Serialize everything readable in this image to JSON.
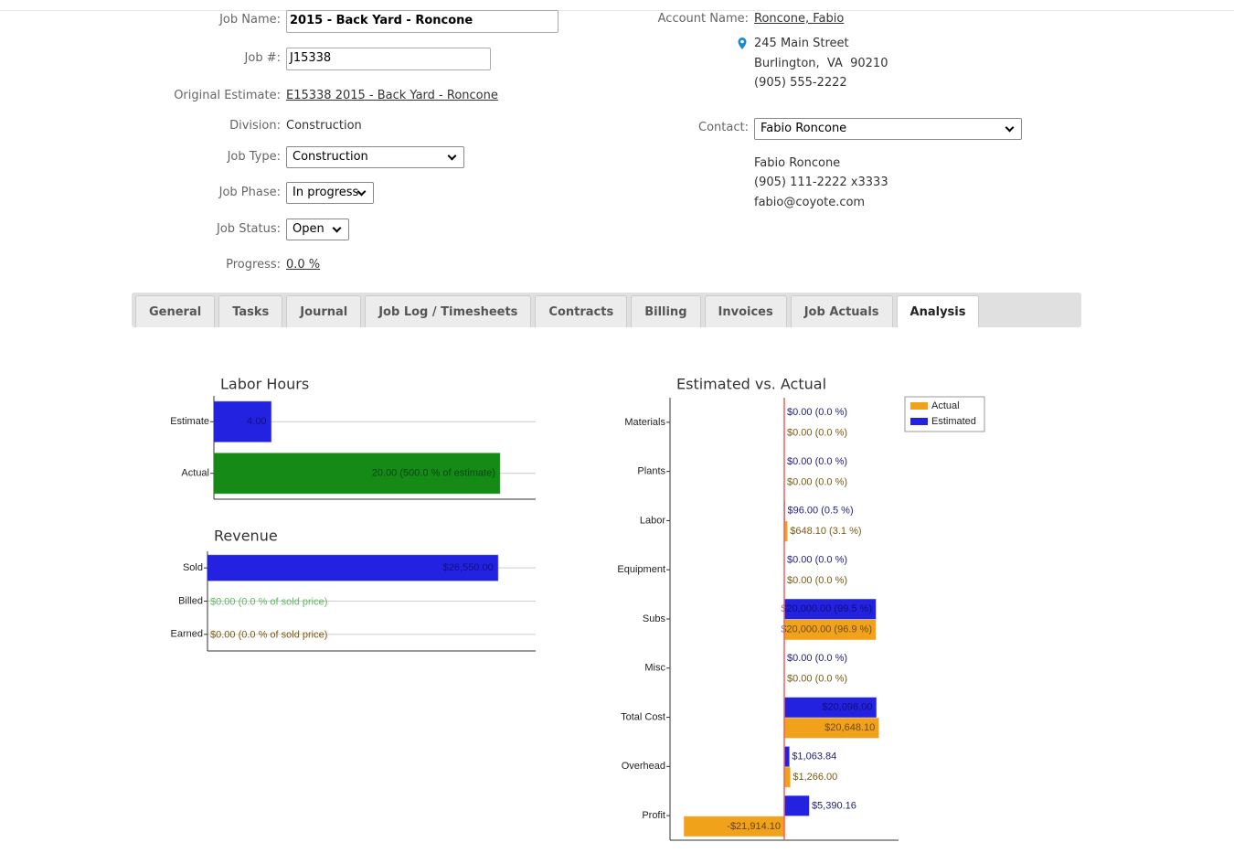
{
  "job": {
    "name_label": "Job Name:",
    "name": "2015 - Back Yard - Roncone",
    "number_label": "Job #:",
    "number": "J15338",
    "estimate_label": "Original Estimate:",
    "estimate": "E15338 2015 - Back Yard - Roncone",
    "division_label": "Division:",
    "division": "Construction",
    "type_label": "Job Type:",
    "type": "Construction",
    "phase_label": "Job Phase:",
    "phase": "In progress",
    "status_label": "Job Status:",
    "status": "Open",
    "progress_label": "Progress:",
    "progress": "0.0 %"
  },
  "account": {
    "label": "Account Name:",
    "name": "Roncone, Fabio",
    "address": [
      "245 Main Street",
      "Burlington,  VA  90210",
      "(905) 555-2222"
    ],
    "contact_label": "Contact:",
    "contact": "Fabio Roncone",
    "contact_details": [
      "Fabio Roncone",
      "(905) 111-2222 x3333",
      "fabio@coyote.com"
    ]
  },
  "tabs": [
    "General",
    "Tasks",
    "Journal",
    "Job Log / Timesheets",
    "Contracts",
    "Billing",
    "Invoices",
    "Job Actuals",
    "Analysis"
  ],
  "active_tab": 8,
  "chart_data": [
    {
      "type": "bar",
      "title": "Labor Hours",
      "categories": [
        "Estimate",
        "Actual"
      ],
      "values": [
        4,
        20
      ],
      "value_labels": [
        "4.00",
        "20.00 (500.0 % of estimate)"
      ],
      "colors": [
        "#2222e0",
        "#168a16"
      ],
      "xlim": [
        0,
        22.5
      ]
    },
    {
      "type": "bar",
      "title": "Revenue",
      "categories": [
        "Sold",
        "Billed",
        "Earned"
      ],
      "values": [
        26550,
        0,
        0
      ],
      "value_labels": [
        "$26,550.00",
        "$0.00 (0.0 % of sold price)",
        "$0.00 (0.0 % of sold price)"
      ],
      "colors": [
        "#2222e0",
        "#5cb85c",
        "#7a5a10"
      ],
      "xlim": [
        0,
        30000
      ]
    },
    {
      "type": "grouped-bar",
      "title": "Estimated vs. Actual",
      "categories": [
        "Materials",
        "Plants",
        "Labor",
        "Equipment",
        "Subs",
        "Misc",
        "Total Cost",
        "Overhead",
        "Profit"
      ],
      "series": [
        {
          "name": "Actual",
          "color": "#f0a21a",
          "label_color": "#7a5a10",
          "values": [
            0,
            0,
            648.1,
            0,
            20000,
            0,
            20648.1,
            1266,
            -21914.1
          ],
          "value_labels": [
            "$0.00 (0.0 %)",
            "$0.00 (0.0 %)",
            "$648.10 (3.1 %)",
            "$0.00 (0.0 %)",
            "$20,000.00 (96.9 %)",
            "$0.00 (0.0 %)",
            "$20,648.10",
            "$1,266.00",
            "-$21,914.10"
          ]
        },
        {
          "name": "Estimated",
          "color": "#2222e0",
          "label_color": "#22227a",
          "values": [
            0,
            0,
            96,
            0,
            20000,
            0,
            20096,
            1063.84,
            5390.16
          ],
          "value_labels": [
            "$0.00 (0.0 %)",
            "$0.00 (0.0 %)",
            "$96.00 (0.5 %)",
            "$0.00 (0.0 %)",
            "$20,000.00 (99.5 %)",
            "$0.00 (0.0 %)",
            "$20,096.00",
            "$1,063.84",
            "$5,390.16"
          ]
        }
      ],
      "xlim": [
        -25000,
        25000
      ],
      "legend": "top-right"
    }
  ]
}
